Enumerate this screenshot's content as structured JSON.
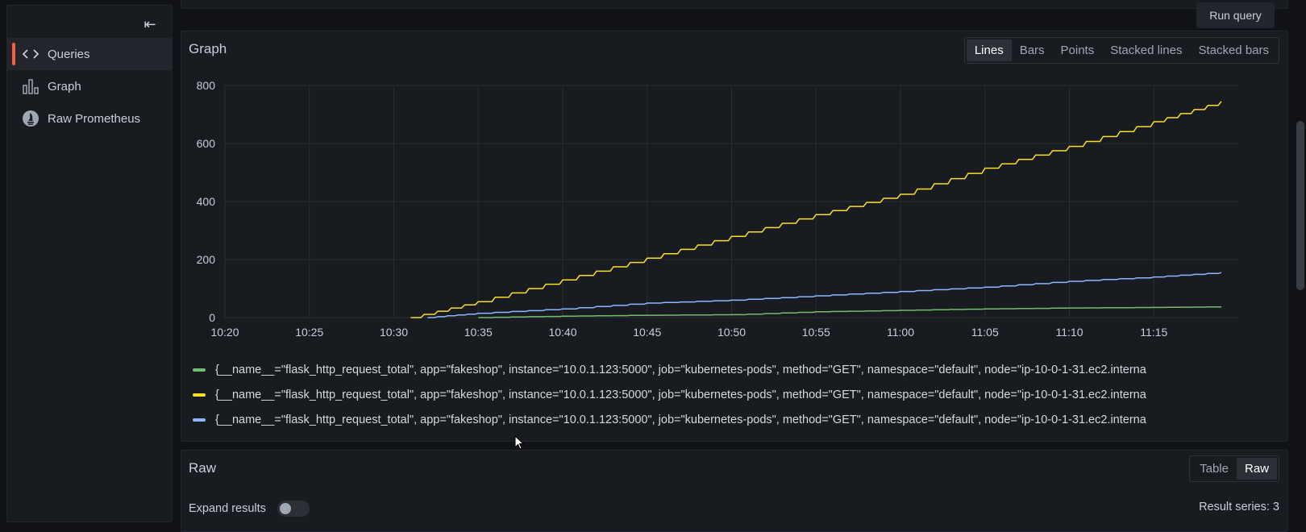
{
  "sidebar": {
    "collapse_icon": "collapse-left-icon",
    "items": [
      {
        "label": "Queries",
        "icon": "code-icon",
        "active": true
      },
      {
        "label": "Graph",
        "icon": "bar-chart-icon",
        "active": false
      },
      {
        "label": "Raw Prometheus",
        "icon": "prometheus-icon",
        "active": false
      }
    ]
  },
  "toolbar": {
    "run_query_label": "Run query"
  },
  "graph_panel": {
    "title": "Graph",
    "modes": [
      "Lines",
      "Bars",
      "Points",
      "Stacked lines",
      "Stacked bars"
    ],
    "active_mode": "Lines",
    "legend": [
      "{__name__=\"flask_http_request_total\", app=\"fakeshop\", instance=\"10.0.1.123:5000\", job=\"kubernetes-pods\", method=\"GET\", namespace=\"default\", node=\"ip-10-0-1-31.ec2.interna",
      "{__name__=\"flask_http_request_total\", app=\"fakeshop\", instance=\"10.0.1.123:5000\", job=\"kubernetes-pods\", method=\"GET\", namespace=\"default\", node=\"ip-10-0-1-31.ec2.interna",
      "{__name__=\"flask_http_request_total\", app=\"fakeshop\", instance=\"10.0.1.123:5000\", job=\"kubernetes-pods\", method=\"GET\", namespace=\"default\", node=\"ip-10-0-1-31.ec2.interna"
    ]
  },
  "raw_panel": {
    "title": "Raw",
    "modes": [
      "Table",
      "Raw"
    ],
    "active_mode": "Raw",
    "expand_label": "Expand results",
    "expand_on": false,
    "result_series": "Result series: 3"
  },
  "chart_data": {
    "type": "line",
    "x_ticks": [
      "10:20",
      "10:25",
      "10:30",
      "10:35",
      "10:40",
      "10:45",
      "10:50",
      "10:55",
      "11:00",
      "11:05",
      "11:10",
      "11:15"
    ],
    "y_ticks": [
      "0",
      "200",
      "400",
      "600",
      "800"
    ],
    "xlim": [
      "10:20",
      "11:20"
    ],
    "ylim": [
      0,
      800
    ],
    "grid": true,
    "legend_position": "bottom",
    "colors": [
      "#73bf69",
      "#fade2a",
      "#8ab8ff"
    ],
    "series": [
      {
        "x": [
          "10:35",
          "10:40",
          "10:45",
          "10:50",
          "10:55",
          "11:00",
          "11:05",
          "11:10",
          "11:15",
          "11:19"
        ],
        "values": [
          0,
          5,
          8,
          10,
          20,
          25,
          30,
          33,
          35,
          37
        ]
      },
      {
        "x": [
          "10:31",
          "10:35",
          "10:40",
          "10:45",
          "10:50",
          "10:55",
          "11:00",
          "11:05",
          "11:10",
          "11:15",
          "11:19"
        ],
        "values": [
          0,
          55,
          130,
          205,
          280,
          355,
          425,
          515,
          590,
          675,
          745
        ]
      },
      {
        "x": [
          "10:32",
          "10:35",
          "10:40",
          "10:45",
          "10:50",
          "10:55",
          "11:00",
          "11:05",
          "11:10",
          "11:15",
          "11:19"
        ],
        "values": [
          0,
          15,
          30,
          50,
          60,
          75,
          90,
          105,
          125,
          140,
          155
        ]
      }
    ]
  }
}
